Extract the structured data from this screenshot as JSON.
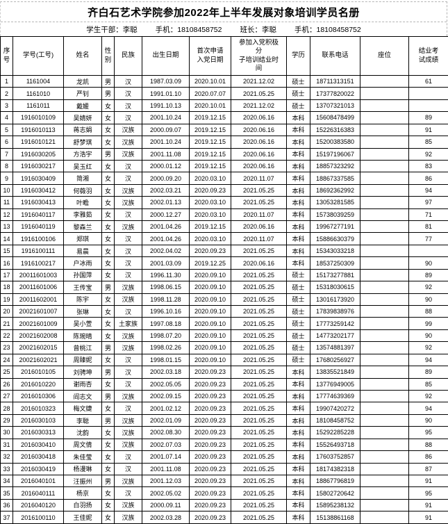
{
  "page": {
    "title": "齐白石艺术学院参加2022年上半年发展对象培训学员名册"
  },
  "info": {
    "student_cadre": "学生干部：李聪",
    "cadre_phone": "手机：18108458752",
    "monitor": "班长：李聪",
    "monitor_phone": "手机：18108458752"
  },
  "colors": {
    "border": "#000000",
    "page_break_dash": "#b5b5b5",
    "text": "#000000",
    "background": "#ffffff"
  },
  "table": {
    "headers": [
      "序\n号",
      "学号(工号)",
      "姓名",
      "性\n别",
      "民族",
      "出生日期",
      "首次申请\n入党日期",
      "参加入党积极\n分\n子培训结业时\n间",
      "学历",
      "联系电话",
      "座位",
      "结业考\n试成绩"
    ],
    "rows": [
      [
        "1",
        "1161004",
        "龙凯",
        "男",
        "汉",
        "1987.03.09",
        "2020.10.01",
        "2021.12.02",
        "硕士",
        "18711313151",
        "",
        "61"
      ],
      [
        "2",
        "1161010",
        "严钊",
        "男",
        "汉",
        "1991.01.10",
        "2020.07.07",
        "2021.05.25",
        "硕士",
        "17377820022",
        "",
        ""
      ],
      [
        "3",
        "1161011",
        "戴媛",
        "女",
        "汉",
        "1991.10.13",
        "2020.10.01",
        "2021.12.02",
        "硕士",
        "13707321013",
        "",
        ""
      ],
      [
        "4",
        "1916010109",
        "吴婧妍",
        "女",
        "汉",
        "2001.10.24",
        "2019.12.15",
        "2020.06.16",
        "本科",
        "15608478499",
        "",
        "89"
      ],
      [
        "5",
        "1916010113",
        "蒋志娟",
        "女",
        "汉族",
        "2000.09.07",
        "2019.12.15",
        "2020.06.16",
        "本科",
        "15226316383",
        "",
        "91"
      ],
      [
        "6",
        "1916010121",
        "舒梦琪",
        "女",
        "汉族",
        "2001.10.24",
        "2019.12.15",
        "2020.06.16",
        "本科",
        "15200383580",
        "",
        "85"
      ],
      [
        "7",
        "1916030205",
        "方浩宇",
        "男",
        "汉族",
        "2001.11.08",
        "2019.12.15",
        "2020.06.16",
        "本科",
        "15197196067",
        "",
        "92"
      ],
      [
        "8",
        "1916030217",
        "吴玉红",
        "女",
        "汉",
        "2000.01.12",
        "2019.12.15",
        "2020.06.16",
        "本科",
        "18857323292",
        "",
        "83"
      ],
      [
        "9",
        "1916030409",
        "简湘",
        "女",
        "汉",
        "2000.09.20",
        "2020.03.10",
        "2020.11.07",
        "本科",
        "18867337585",
        "",
        "86"
      ],
      [
        "10",
        "1916030412",
        "何薇羽",
        "女",
        "汉族",
        "2002.03.21",
        "2020.09.23",
        "2021.05.25",
        "本科",
        "18692362992",
        "",
        "94"
      ],
      [
        "11",
        "1916030413",
        "叶瞻",
        "女",
        "汉族",
        "2002.01.13",
        "2020.03.10",
        "2021.05.25",
        "本科",
        "13053281585",
        "",
        "97"
      ],
      [
        "12",
        "1916040117",
        "李雅茹",
        "女",
        "汉",
        "2000.12.27",
        "2020.03.10",
        "2020.11.07",
        "本科",
        "15738039259",
        "",
        "71"
      ],
      [
        "13",
        "1916040119",
        "黎森兰",
        "女",
        "汉族",
        "2001.04.26",
        "2019.12.15",
        "2020.06.16",
        "本科",
        "19967277191",
        "",
        "81"
      ],
      [
        "14",
        "1916100106",
        "郑琪",
        "女",
        "汉",
        "2001.04.26",
        "2020.03.10",
        "2020.11.07",
        "本科",
        "15886630379",
        "",
        "77"
      ],
      [
        "15",
        "1916100111",
        "易晨",
        "女",
        "汉",
        "2002.04.02",
        "2020.09.23",
        "2021.05.25",
        "本科",
        "15343033218",
        "",
        ""
      ],
      [
        "16",
        "1916100217",
        "户冰雨",
        "女",
        "汉",
        "2001.03.09",
        "2019.12.25",
        "2020.06.16",
        "本科",
        "18537250309",
        "",
        "90"
      ],
      [
        "17",
        "20011601003",
        "孙国萍",
        "女",
        "汉",
        "1996.11.30",
        "2020.09.10",
        "2021.05.25",
        "硕士",
        "15173277881",
        "",
        "89"
      ],
      [
        "18",
        "20011601006",
        "王传宝",
        "男",
        "汉族",
        "1998.06.15",
        "2020.09.10",
        "2021.05.25",
        "硕士",
        "15318030615",
        "",
        "92"
      ],
      [
        "19",
        "20011602001",
        "陈宇",
        "女",
        "汉族",
        "1998.11.28",
        "2020.09.10",
        "2021.05.25",
        "硕士",
        "13016173920",
        "",
        "90"
      ],
      [
        "20",
        "20021601007",
        "张琳",
        "女",
        "汉",
        "1996.10.16",
        "2020.09.10",
        "2021.05.25",
        "硕士",
        "17839838976",
        "",
        "88"
      ],
      [
        "21",
        "20021601009",
        "吴小萱",
        "女",
        "土家族",
        "1997.08.18",
        "2020.09.10",
        "2021.05.25",
        "硕士",
        "17773259142",
        "",
        "99"
      ],
      [
        "22",
        "20021602008",
        "陈琬晴",
        "女",
        "汉族",
        "1998.07.20",
        "2020.09.10",
        "2021.05.25",
        "硕士",
        "14773202177",
        "",
        "90"
      ],
      [
        "23",
        "20021602015",
        "曾桃江",
        "男",
        "汉族",
        "1998.02.26",
        "2020.09.10",
        "2021.05.25",
        "硕士",
        "13574881397",
        "",
        "92"
      ],
      [
        "24",
        "20021602021",
        "周臻妮",
        "女",
        "汉",
        "1998.01.15",
        "2020.09.10",
        "2021.05.25",
        "硕士",
        "17680256927",
        "",
        "94"
      ],
      [
        "25",
        "2016010105",
        "刘骋坤",
        "男",
        "汉",
        "2002.03.18",
        "2020.09.23",
        "2021.05.25",
        "本科",
        "13835521849",
        "",
        "89"
      ],
      [
        "26",
        "2016010220",
        "谢雨杏",
        "女",
        "汉",
        "2002.05.05",
        "2020.09.23",
        "2021.05.25",
        "本科",
        "13776949005",
        "",
        "85"
      ],
      [
        "27",
        "2016010306",
        "阎志文",
        "男",
        "汉族",
        "2002.09.15",
        "2020.09.23",
        "2021.05.25",
        "本科",
        "17774639369",
        "",
        "92"
      ],
      [
        "28",
        "2016010323",
        "梅文婕",
        "女",
        "汉",
        "2001.02.12",
        "2020.09.23",
        "2021.05.25",
        "本科",
        "19907420272",
        "",
        "94"
      ],
      [
        "29",
        "2016030103",
        "李聪",
        "男",
        "汉族",
        "2002.01.09",
        "2020.09.23",
        "2021.05.25",
        "本科",
        "18108458752",
        "",
        "90"
      ],
      [
        "30",
        "2016030313",
        "沈韵",
        "女",
        "汉族",
        "2002.08.30",
        "2020.09.23",
        "2021.05.25",
        "本科",
        "15292285228",
        "",
        "95"
      ],
      [
        "31",
        "2016030410",
        "周文倩",
        "女",
        "汉族",
        "2002.07.03",
        "2020.09.23",
        "2021.05.25",
        "本科",
        "15526493718",
        "",
        "88"
      ],
      [
        "32",
        "2016030418",
        "朱佳莹",
        "女",
        "汉",
        "2001.07.14",
        "2020.09.23",
        "2021.05.25",
        "本科",
        "17603752857",
        "",
        "86"
      ],
      [
        "33",
        "2016030419",
        "杨漫琳",
        "女",
        "汉",
        "2001.11.08",
        "2020.09.23",
        "2021.05.25",
        "本科",
        "18174382318",
        "",
        "87"
      ],
      [
        "34",
        "2016040101",
        "汪振州",
        "男",
        "汉族",
        "2001.12.03",
        "2020.09.23",
        "2021.05.25",
        "本科",
        "18867796819",
        "",
        "91"
      ],
      [
        "35",
        "2016040111",
        "杨京",
        "女",
        "汉",
        "2002.05.02",
        "2020.09.23",
        "2021.05.25",
        "本科",
        "15802720642",
        "",
        "95"
      ],
      [
        "36",
        "2016040120",
        "白羽扬",
        "女",
        "汉族",
        "2000.09.11",
        "2020.09.23",
        "2021.05.25",
        "本科",
        "15895238132",
        "",
        "91"
      ],
      [
        "37",
        "2016100110",
        "王佳妮",
        "女",
        "汉族",
        "2002.03.28",
        "2020.09.23",
        "2021.05.25",
        "本科",
        "15138861168",
        "",
        "91"
      ]
    ]
  }
}
